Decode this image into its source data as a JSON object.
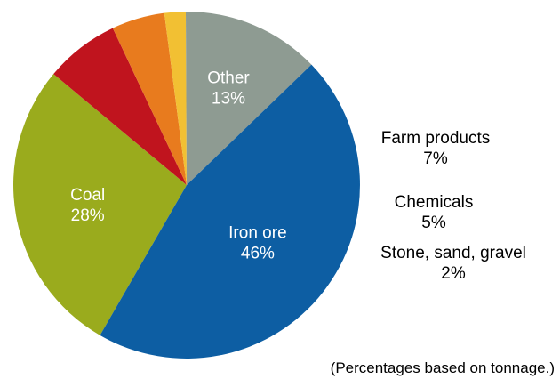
{
  "chart_data": {
    "type": "pie",
    "start_angle_deg": 210,
    "direction": "clockwise",
    "slices": [
      {
        "label": "Coal",
        "value_label": "28%",
        "value": 28,
        "color": "#9aab1d",
        "label_style": "inside"
      },
      {
        "label": "Farm products",
        "value_label": "7%",
        "value": 7,
        "color": "#c0141e",
        "label_style": "outside"
      },
      {
        "label": "Chemicals",
        "value_label": "5%",
        "value": 5,
        "color": "#e87b1e",
        "label_style": "outside"
      },
      {
        "label": "Stone, sand, gravel",
        "value_label": "2%",
        "value": 2,
        "color": "#f2c033",
        "label_style": "outside"
      },
      {
        "label": "Other",
        "value_label": "13%",
        "value": 13,
        "color": "#8e9b92",
        "label_style": "inside"
      },
      {
        "label": "Iron ore",
        "value_label": "46%",
        "value": 46,
        "color": "#0d5ea3",
        "label_style": "inside"
      }
    ],
    "footnote": "(Percentages based on tonnage.)"
  }
}
